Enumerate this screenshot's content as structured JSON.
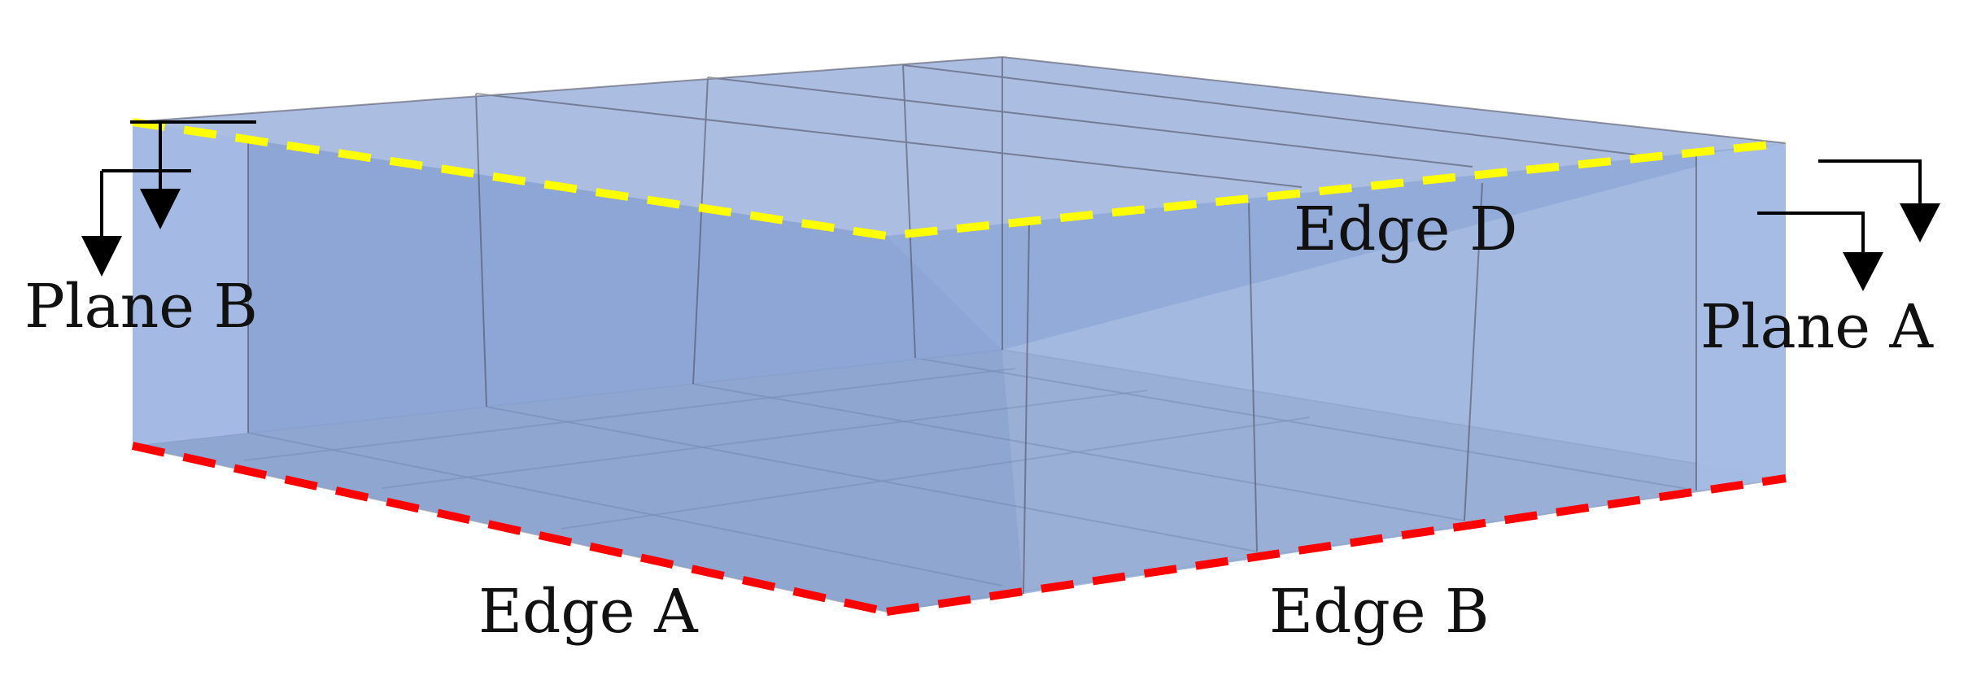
{
  "labels": {
    "plane_b": "Plane B",
    "plane_a": "Plane A",
    "edge_d": "Edge D",
    "edge_a": "Edge A",
    "edge_b": "Edge B"
  },
  "colors": {
    "wall_fill": "#7f9ccf",
    "wall_end_fill": "#a6bde6",
    "floor_fill": "#cfcfcf",
    "top_edge_dash": "#ffff00",
    "bottom_edge_dash": "#ff0000",
    "arrow": "#000000",
    "grid_line": "#4a4a5a"
  }
}
